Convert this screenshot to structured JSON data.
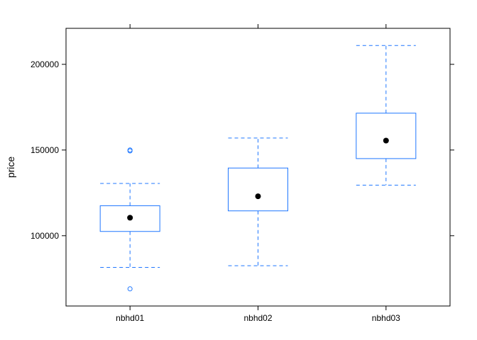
{
  "chart_data": {
    "type": "box",
    "title": "",
    "xlabel": "",
    "ylabel": "price",
    "ylim": [
      59000,
      221000
    ],
    "yticks": [
      100000,
      150000,
      200000
    ],
    "ytick_labels": [
      "100000",
      "150000",
      "200000"
    ],
    "categories": [
      "nbhd01",
      "nbhd02",
      "nbhd03"
    ],
    "boxes": [
      {
        "category": "nbhd01",
        "whisker_low": 81500,
        "q1": 102500,
        "median": 110500,
        "q3": 117500,
        "whisker_high": 130500,
        "outliers": [
          69000,
          149500,
          150000
        ]
      },
      {
        "category": "nbhd02",
        "whisker_low": 82500,
        "q1": 114500,
        "median": 123000,
        "q3": 139500,
        "whisker_high": 157000,
        "outliers": []
      },
      {
        "category": "nbhd03",
        "whisker_low": 129500,
        "q1": 145000,
        "median": 155500,
        "q3": 171500,
        "whisker_high": 211000,
        "outliers": []
      }
    ],
    "colors": {
      "box": "#1f77ff",
      "median_dot": "#000000",
      "frame": "#000000"
    },
    "grid": false,
    "legend": "none"
  }
}
